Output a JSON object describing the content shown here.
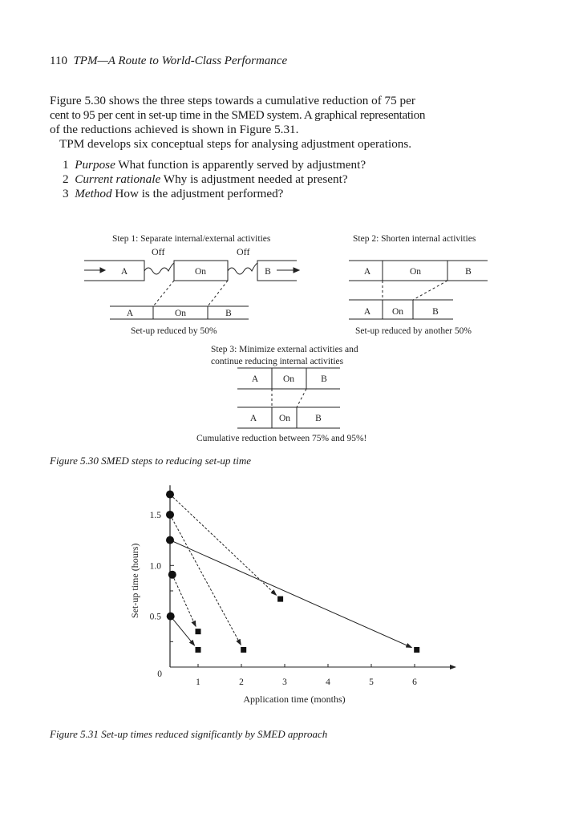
{
  "header": {
    "page_number": "110",
    "running_title": "TPM—A Route to World-Class Performance"
  },
  "body": {
    "paragraph1": [
      "Figure 5.30 shows the three steps towards a cumulative reduction of 75 per",
      "cent to 95 per cent in set-up time in the SMED system. A graphical representation",
      "of the reductions achieved is shown in Figure 5.31."
    ],
    "paragraph2": "TPM develops six conceptual steps for analysing adjustment operations.",
    "list": [
      {
        "num": "1",
        "term": "Purpose",
        "text": "What function is apparently served by adjustment?"
      },
      {
        "num": "2",
        "term": "Current rationale",
        "text": "Why is adjustment needed at present?"
      },
      {
        "num": "3",
        "term": "Method",
        "text": "How is the adjustment performed?"
      }
    ]
  },
  "figure530": {
    "step1_title": "Step 1: Separate internal/external activities",
    "off_label": "Off",
    "label_a": "A",
    "label_on": "On",
    "label_b": "B",
    "step1_caption": "Set-up reduced by 50%",
    "step2_title": "Step 2: Shorten internal activities",
    "step2_caption": "Set-up reduced by another 50%",
    "step3_title_line1": "Step 3: Minimize external activities and",
    "step3_title_line2": "continue reducing internal activities",
    "step3_caption": "Cumulative reduction between 75% and 95%!",
    "caption": "Figure 5.30 SMED steps to reducing set-up time"
  },
  "chart_data": {
    "type": "scatter",
    "xlabel": "Application time (months)",
    "ylabel": "Set-up time (hours)",
    "xlim": [
      0,
      6.6
    ],
    "ylim": [
      0,
      1.75
    ],
    "x_ticks": [
      1,
      2,
      3,
      4,
      5,
      6
    ],
    "y_ticks": [
      0,
      0.5,
      1.0,
      1.5
    ],
    "y_tick_labels": [
      "0",
      "0.5",
      "1.0",
      "1.5"
    ],
    "grid": false,
    "links": [
      {
        "from": [
          0,
          1.7
        ],
        "to": [
          2.9,
          0.67
        ],
        "style": "dashed"
      },
      {
        "from": [
          0,
          1.5
        ],
        "to": [
          2.05,
          0.17
        ],
        "style": "dashed"
      },
      {
        "from": [
          0,
          1.25
        ],
        "to": [
          6.05,
          0.17
        ],
        "style": "solid"
      },
      {
        "from": [
          0.08,
          0.91
        ],
        "to": [
          1.0,
          0.35
        ],
        "style": "dashed"
      },
      {
        "from": [
          0.02,
          0.5
        ],
        "to": [
          1.0,
          0.17
        ],
        "style": "solid"
      }
    ],
    "start_marker": "circle",
    "end_marker": "square",
    "caption": "Figure 5.31 Set-up times reduced significantly by SMED approach"
  }
}
